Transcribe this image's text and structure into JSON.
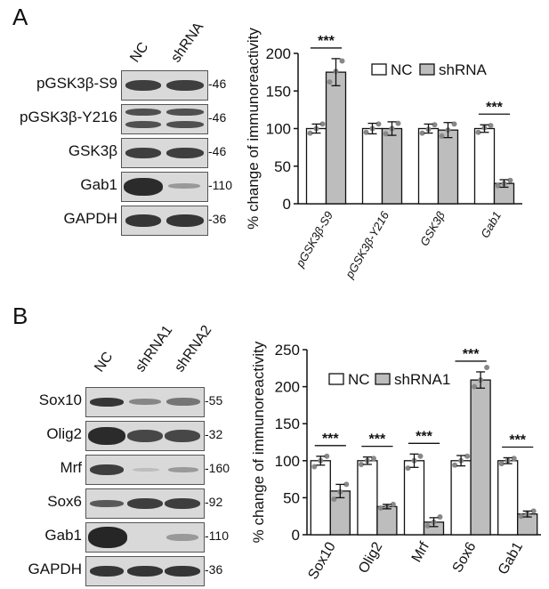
{
  "panel_a": {
    "letter": "A",
    "lanes": [
      "NC",
      "shRNA"
    ],
    "blots": [
      {
        "protein": "pGSK3β-S9",
        "mw": "46"
      },
      {
        "protein": "pGSK3β-Y216",
        "mw": "46"
      },
      {
        "protein": "GSK3β",
        "mw": "46"
      },
      {
        "protein": "Gab1",
        "mw": "110"
      },
      {
        "protein": "GAPDH",
        "mw": "36"
      }
    ]
  },
  "panel_b": {
    "letter": "B",
    "lanes": [
      "NC",
      "shRNA1",
      "shRNA2"
    ],
    "blots": [
      {
        "protein": "Sox10",
        "mw": "55"
      },
      {
        "protein": "Olig2",
        "mw": "32"
      },
      {
        "protein": "Mrf",
        "mw": "160"
      },
      {
        "protein": "Sox6",
        "mw": "92"
      },
      {
        "protein": "Gab1",
        "mw": "110"
      },
      {
        "protein": "GAPDH",
        "mw": "36"
      }
    ]
  },
  "chart_data": [
    {
      "type": "bar",
      "panel": "A",
      "categories": [
        "pGSK3β-S9",
        "pGSK3β-Y216",
        "GSK3β",
        "Gab1"
      ],
      "series": [
        {
          "name": "NC",
          "values": [
            100,
            100,
            100,
            100
          ],
          "errors": [
            6,
            7,
            6,
            5
          ],
          "color": "#ffffff",
          "points": [
            [
              94,
              100,
              106
            ],
            [
              95,
              100,
              106
            ],
            [
              94,
              99,
              105
            ],
            [
              95,
              101,
              104
            ]
          ]
        },
        {
          "name": "shRNA",
          "values": [
            175,
            100,
            98,
            27
          ],
          "errors": [
            18,
            9,
            10,
            5
          ],
          "color": "#bdbdbd",
          "points": [
            [
              162,
              176,
              190
            ],
            [
              93,
              100,
              107
            ],
            [
              90,
              98,
              106
            ],
            [
              24,
              27,
              31
            ]
          ]
        }
      ],
      "significance": [
        {
          "category": "pGSK3β-S9",
          "label": "***"
        },
        {
          "category": "Gab1",
          "label": "***"
        }
      ],
      "title": "",
      "xlabel": "",
      "ylabel": "% change of immunoreactivity",
      "ylim": [
        0,
        200
      ],
      "yticks": [
        0,
        50,
        100,
        150,
        200
      ],
      "legend": "top-right",
      "grid": false
    },
    {
      "type": "bar",
      "panel": "B",
      "categories": [
        "Sox10",
        "Olig2",
        "Mrf",
        "Sox6",
        "Gab1"
      ],
      "series": [
        {
          "name": "NC",
          "values": [
            100,
            100,
            100,
            100,
            100
          ],
          "errors": [
            6,
            5,
            9,
            7,
            4
          ],
          "color": "#ffffff",
          "points": [
            [
              92,
              100,
              106
            ],
            [
              95,
              100,
              103
            ],
            [
              90,
              100,
              106
            ],
            [
              94,
              100,
              106
            ],
            [
              96,
              100,
              103
            ]
          ]
        },
        {
          "name": "shRNA1",
          "values": [
            59,
            38,
            17,
            209,
            28
          ],
          "errors": [
            9,
            3,
            6,
            11,
            4
          ],
          "color": "#bdbdbd",
          "points": [
            [
              48,
              58,
              68
            ],
            [
              36,
              38,
              41
            ],
            [
              12,
              17,
              24
            ],
            [
              200,
              209,
              226
            ],
            [
              25,
              28,
              32
            ]
          ]
        }
      ],
      "significance": [
        {
          "category": "Sox10",
          "label": "***"
        },
        {
          "category": "Olig2",
          "label": "***"
        },
        {
          "category": "Mrf",
          "label": "***"
        },
        {
          "category": "Sox6",
          "label": "***"
        },
        {
          "category": "Gab1",
          "label": "***"
        }
      ],
      "title": "",
      "xlabel": "",
      "ylabel": "% change of immunoreactivity",
      "ylim": [
        0,
        250
      ],
      "yticks": [
        0,
        50,
        100,
        150,
        200,
        250
      ],
      "legend": "top-right",
      "grid": false
    }
  ]
}
